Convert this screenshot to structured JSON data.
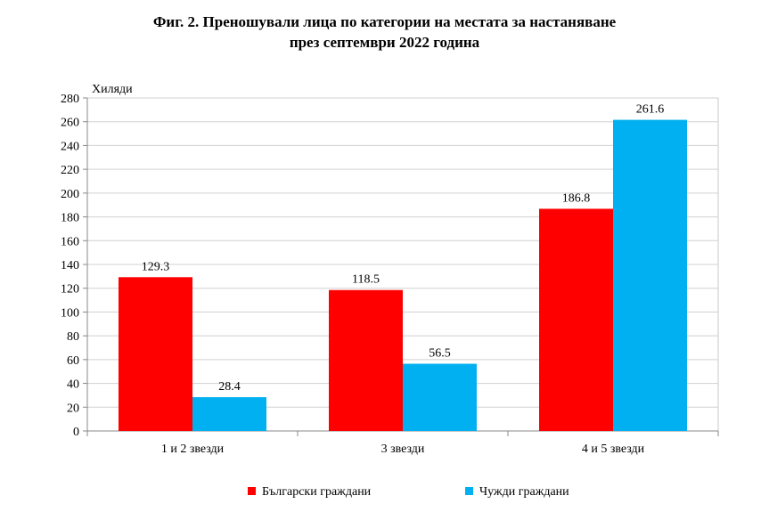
{
  "title_line1": "Фиг. 2. Преношували лица по категории на местата за настаняване",
  "title_line2": "през септември 2022 година",
  "chart_data": {
    "type": "bar",
    "categories": [
      "1 и 2 звезди",
      "3 звезди",
      "4 и 5 звезди"
    ],
    "series": [
      {
        "name": "Български граждани",
        "color": "#ff0000",
        "values": [
          129.3,
          118.5,
          186.8
        ]
      },
      {
        "name": "Чужди граждани",
        "color": "#00b0f0",
        "values": [
          28.4,
          56.5,
          261.6
        ]
      }
    ],
    "ylabel": "Хиляди",
    "ylim": [
      0,
      280
    ],
    "ytick_step": 20,
    "grid": true,
    "legend_position": "bottom"
  }
}
